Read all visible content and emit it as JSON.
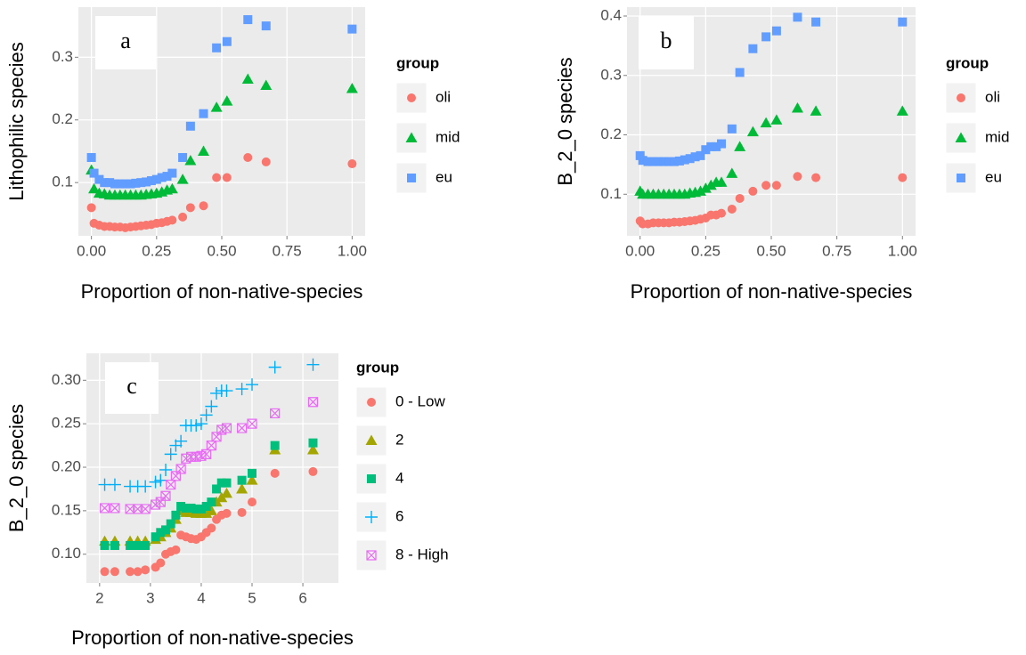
{
  "chart_data": [
    {
      "type": "scatter",
      "annotation": "a",
      "xlabel": "Proportion of non-native-species",
      "ylabel": "Lithophilic species",
      "legend_title": "group",
      "legend": "right",
      "grid": true,
      "xlim": [
        -0.05,
        1.05
      ],
      "xticks": [
        {
          "value": 0,
          "label": "0.00"
        },
        {
          "value": 0.25,
          "label": "0.25"
        },
        {
          "value": 0.5,
          "label": "0.50"
        },
        {
          "value": 0.75,
          "label": "0.75"
        },
        {
          "value": 1,
          "label": "1.00"
        }
      ],
      "ylim": [
        0.015,
        0.38
      ],
      "yticks": [
        0.1,
        0.2,
        0.3
      ],
      "x": [
        0,
        0.01,
        0.03,
        0.05,
        0.07,
        0.09,
        0.11,
        0.13,
        0.15,
        0.17,
        0.19,
        0.21,
        0.23,
        0.25,
        0.27,
        0.29,
        0.31,
        0.35,
        0.38,
        0.43,
        0.48,
        0.52,
        0.6,
        0.67,
        1.0
      ],
      "series": [
        {
          "name": "oli",
          "color": "#f8766d",
          "shape": "circle",
          "values": [
            0.06,
            0.035,
            0.032,
            0.03,
            0.03,
            0.029,
            0.029,
            0.028,
            0.029,
            0.03,
            0.031,
            0.032,
            0.033,
            0.035,
            0.036,
            0.038,
            0.04,
            0.045,
            0.06,
            0.063,
            0.108,
            0.108,
            0.14,
            0.133,
            0.13
          ]
        },
        {
          "name": "mid",
          "color": "#00ba38",
          "shape": "triangle",
          "values": [
            0.12,
            0.09,
            0.083,
            0.082,
            0.08,
            0.08,
            0.08,
            0.08,
            0.08,
            0.08,
            0.08,
            0.081,
            0.082,
            0.083,
            0.085,
            0.088,
            0.09,
            0.105,
            0.135,
            0.15,
            0.22,
            0.23,
            0.265,
            0.255,
            0.25
          ]
        },
        {
          "name": "eu",
          "color": "#619cff",
          "shape": "square",
          "values": [
            0.14,
            0.115,
            0.105,
            0.1,
            0.1,
            0.098,
            0.098,
            0.098,
            0.098,
            0.099,
            0.1,
            0.101,
            0.103,
            0.105,
            0.108,
            0.11,
            0.115,
            0.14,
            0.19,
            0.21,
            0.315,
            0.325,
            0.36,
            0.35,
            0.345
          ]
        }
      ]
    },
    {
      "type": "scatter",
      "annotation": "b",
      "xlabel": "Proportion of non-native-species",
      "ylabel": "B_2_0 species",
      "legend_title": "group",
      "legend": "right",
      "grid": true,
      "xlim": [
        -0.05,
        1.05
      ],
      "xticks": [
        {
          "value": 0,
          "label": "0.00"
        },
        {
          "value": 0.25,
          "label": "0.25"
        },
        {
          "value": 0.5,
          "label": "0.50"
        },
        {
          "value": 0.75,
          "label": "0.75"
        },
        {
          "value": 1,
          "label": "1.00"
        }
      ],
      "ylim": [
        0.03,
        0.415
      ],
      "yticks": [
        0.1,
        0.2,
        0.3,
        0.4
      ],
      "x": [
        0,
        0.01,
        0.03,
        0.05,
        0.07,
        0.09,
        0.11,
        0.13,
        0.15,
        0.17,
        0.19,
        0.21,
        0.23,
        0.25,
        0.27,
        0.29,
        0.31,
        0.35,
        0.38,
        0.43,
        0.48,
        0.52,
        0.6,
        0.67,
        1.0
      ],
      "series": [
        {
          "name": "oli",
          "color": "#f8766d",
          "shape": "circle",
          "values": [
            0.055,
            0.05,
            0.05,
            0.052,
            0.052,
            0.052,
            0.052,
            0.053,
            0.053,
            0.054,
            0.055,
            0.056,
            0.058,
            0.06,
            0.065,
            0.065,
            0.068,
            0.075,
            0.093,
            0.105,
            0.115,
            0.115,
            0.13,
            0.128,
            0.128
          ]
        },
        {
          "name": "mid",
          "color": "#00ba38",
          "shape": "triangle",
          "values": [
            0.105,
            0.1,
            0.1,
            0.1,
            0.1,
            0.1,
            0.1,
            0.1,
            0.1,
            0.1,
            0.102,
            0.103,
            0.105,
            0.11,
            0.115,
            0.12,
            0.12,
            0.135,
            0.18,
            0.205,
            0.22,
            0.225,
            0.245,
            0.24,
            0.24
          ]
        },
        {
          "name": "eu",
          "color": "#619cff",
          "shape": "square",
          "values": [
            0.165,
            0.157,
            0.155,
            0.155,
            0.155,
            0.155,
            0.155,
            0.155,
            0.156,
            0.158,
            0.16,
            0.163,
            0.165,
            0.175,
            0.18,
            0.18,
            0.185,
            0.21,
            0.305,
            0.345,
            0.365,
            0.375,
            0.398,
            0.39,
            0.39
          ]
        }
      ]
    },
    {
      "type": "scatter",
      "annotation": "c",
      "xlabel": "Proportion of non-native-species",
      "ylabel": "B_2_0 species",
      "legend_title": "group",
      "legend": "right",
      "grid": true,
      "xlim": [
        1.74,
        6.7
      ],
      "xticks": [
        2,
        3,
        4,
        5,
        6
      ],
      "ylim": [
        0.067,
        0.331
      ],
      "yticks": [
        {
          "value": 0.1,
          "label": "0.10"
        },
        {
          "value": 0.15,
          "label": "0.15"
        },
        {
          "value": 0.2,
          "label": "0.20"
        },
        {
          "value": 0.25,
          "label": "0.25"
        },
        {
          "value": 0.3,
          "label": "0.30"
        }
      ],
      "x": [
        2.1,
        2.3,
        2.6,
        2.75,
        2.9,
        3.1,
        3.2,
        3.3,
        3.4,
        3.5,
        3.6,
        3.7,
        3.8,
        3.9,
        4.0,
        4.1,
        4.2,
        4.3,
        4.4,
        4.5,
        4.8,
        5.0,
        5.45,
        6.2
      ],
      "series": [
        {
          "name": "0 - Low",
          "color": "#f8766d",
          "shape": "circle",
          "values": [
            0.08,
            0.08,
            0.08,
            0.08,
            0.082,
            0.085,
            0.09,
            0.1,
            0.103,
            0.105,
            0.122,
            0.12,
            0.118,
            0.117,
            0.12,
            0.125,
            0.13,
            0.14,
            0.145,
            0.147,
            0.148,
            0.16,
            0.193,
            0.195
          ]
        },
        {
          "name": "2",
          "color": "#a3a500",
          "shape": "triangle",
          "values": [
            0.115,
            0.115,
            0.115,
            0.115,
            0.115,
            0.117,
            0.12,
            0.125,
            0.13,
            0.14,
            0.15,
            0.148,
            0.148,
            0.147,
            0.147,
            0.147,
            0.15,
            0.16,
            0.165,
            0.17,
            0.175,
            0.185,
            0.22,
            0.22
          ]
        },
        {
          "name": "4",
          "color": "#00bf7d",
          "shape": "square",
          "values": [
            0.11,
            0.11,
            0.11,
            0.11,
            0.11,
            0.12,
            0.125,
            0.128,
            0.135,
            0.145,
            0.155,
            0.153,
            0.153,
            0.152,
            0.152,
            0.155,
            0.16,
            0.175,
            0.182,
            0.182,
            0.185,
            0.193,
            0.225,
            0.228
          ]
        },
        {
          "name": "6",
          "color": "#00b0f6",
          "shape": "plus",
          "values": [
            0.18,
            0.18,
            0.178,
            0.178,
            0.178,
            0.183,
            0.185,
            0.197,
            0.215,
            0.225,
            0.23,
            0.248,
            0.248,
            0.248,
            0.25,
            0.26,
            0.27,
            0.285,
            0.288,
            0.288,
            0.29,
            0.295,
            0.315,
            0.318
          ]
        },
        {
          "name": "8 - High",
          "color": "#e76bf3",
          "shape": "squarex",
          "values": [
            0.153,
            0.153,
            0.152,
            0.152,
            0.152,
            0.157,
            0.16,
            0.167,
            0.18,
            0.19,
            0.198,
            0.21,
            0.212,
            0.212,
            0.213,
            0.215,
            0.225,
            0.235,
            0.243,
            0.245,
            0.245,
            0.25,
            0.262,
            0.275
          ]
        }
      ]
    }
  ]
}
